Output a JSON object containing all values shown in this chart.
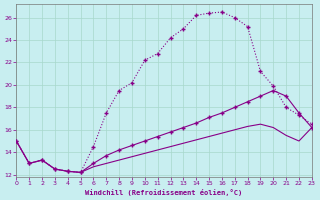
{
  "xlabel": "Windchill (Refroidissement éolien,°C)",
  "bg_color": "#c8eef0",
  "grid_color": "#a8d8cc",
  "line_color": "#880088",
  "xlim": [
    0,
    23
  ],
  "ylim": [
    11.8,
    27.2
  ],
  "xticks": [
    0,
    1,
    2,
    3,
    4,
    5,
    6,
    7,
    8,
    9,
    10,
    11,
    12,
    13,
    14,
    15,
    16,
    17,
    18,
    19,
    20,
    21,
    22,
    23
  ],
  "yticks": [
    12,
    14,
    16,
    18,
    20,
    22,
    24,
    26
  ],
  "curve1_x": [
    0,
    1,
    2,
    3,
    4,
    5,
    6,
    7,
    8,
    9,
    10,
    11,
    12,
    13,
    14,
    15,
    16,
    17,
    18,
    19,
    20,
    21,
    22,
    23
  ],
  "curve1_y": [
    15.0,
    13.0,
    13.3,
    12.5,
    12.3,
    12.2,
    14.5,
    17.5,
    19.5,
    20.2,
    22.2,
    22.8,
    24.2,
    25.0,
    26.2,
    26.4,
    26.5,
    26.0,
    25.2,
    21.2,
    19.9,
    18.0,
    17.3,
    16.5
  ],
  "curve2_x": [
    0,
    1,
    2,
    3,
    4,
    5,
    6,
    7,
    8,
    9,
    10,
    11,
    12,
    13,
    14,
    15,
    16,
    17,
    18,
    19,
    20,
    21,
    22,
    23
  ],
  "curve2_y": [
    15.0,
    13.0,
    13.3,
    12.5,
    12.3,
    12.2,
    13.0,
    13.7,
    14.2,
    14.6,
    15.0,
    15.4,
    15.8,
    16.2,
    16.6,
    17.1,
    17.5,
    18.0,
    18.5,
    19.0,
    19.5,
    19.0,
    17.5,
    16.2
  ],
  "curve3_x": [
    0,
    1,
    2,
    3,
    4,
    5,
    6,
    7,
    8,
    9,
    10,
    11,
    12,
    13,
    14,
    15,
    16,
    17,
    18,
    19,
    20,
    21,
    22,
    23
  ],
  "curve3_y": [
    15.0,
    13.0,
    13.3,
    12.5,
    12.3,
    12.2,
    12.7,
    13.0,
    13.3,
    13.6,
    13.9,
    14.2,
    14.5,
    14.8,
    15.1,
    15.4,
    15.7,
    16.0,
    16.3,
    16.5,
    16.2,
    15.5,
    15.0,
    16.2
  ]
}
